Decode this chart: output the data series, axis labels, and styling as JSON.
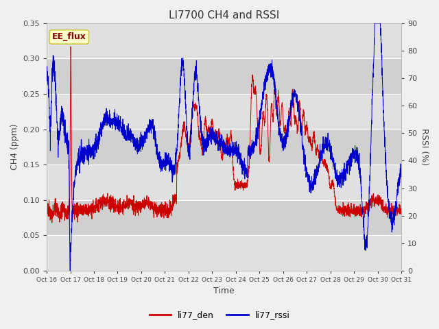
{
  "title": "LI7700 CH4 and RSSI",
  "xlabel": "Time",
  "ylabel_left": "CH4 (ppm)",
  "ylabel_right": "RSSI (%)",
  "annotation": "EE_flux",
  "legend_labels": [
    "li77_den",
    "li77_rssi"
  ],
  "color_red": "#cc0000",
  "color_blue": "#0000cc",
  "xlim": [
    0,
    15
  ],
  "ylim_left": [
    0.0,
    0.35
  ],
  "ylim_right": [
    0,
    90
  ],
  "yticks_left": [
    0.0,
    0.05,
    0.1,
    0.15,
    0.2,
    0.25,
    0.3,
    0.35
  ],
  "yticks_right": [
    0,
    10,
    20,
    30,
    40,
    50,
    60,
    70,
    80,
    90
  ],
  "xtick_labels": [
    "Oct 16",
    "Oct 17",
    "Oct 18",
    "Oct 19",
    "Oct 20",
    "Oct 21",
    "Oct 22",
    "Oct 23",
    "Oct 24",
    "Oct 25",
    "Oct 26",
    "Oct 27",
    "Oct 28",
    "Oct 29",
    "Oct 30",
    "Oct 31"
  ],
  "fig_bg": "#f0f0f0",
  "ax_bg": "#e8e8e8",
  "band_light": "#e0e0e0",
  "band_dark": "#d0d0d0",
  "annotation_bg": "#ffffcc",
  "annotation_border": "#cccc44",
  "title_fontsize": 11,
  "axis_label_fontsize": 9,
  "tick_fontsize": 8,
  "annot_fontsize": 9,
  "legend_fontsize": 9
}
